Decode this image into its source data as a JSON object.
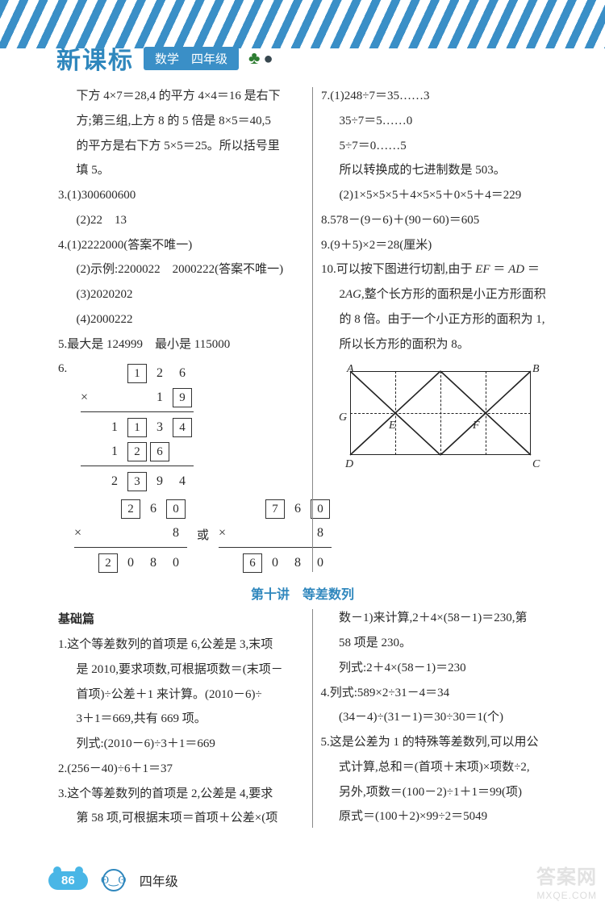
{
  "header": {
    "brand": "新课标",
    "tag": "数学　四年级"
  },
  "upper": {
    "left": {
      "p1a": "下方 4×7＝28,4 的平方 4×4＝16 是右下",
      "p1b": "方;第三组,上方 8 的 5 倍是 8×5＝40,5",
      "p1c": "的平方是右下方 5×5＝25。所以括号里",
      "p1d": "填 5。",
      "q3_1": "3.(1)300600600",
      "q3_2": "(2)22　13",
      "q4_1": "4.(1)2222000(答案不唯一)",
      "q4_2": "(2)示例:2200022　2000222(答案不唯一)",
      "q4_3": "(3)2020202",
      "q4_4": "(4)2000222",
      "q5": "5.最大是 124999　最小是 115000",
      "q6_label": "6.",
      "mult1": {
        "r1": [
          "",
          "1",
          "2",
          "6"
        ],
        "r1_box": [
          false,
          true,
          false,
          false
        ],
        "r2_op": "×",
        "r2": [
          "",
          "",
          "1",
          "9"
        ],
        "r2_box": [
          false,
          false,
          false,
          true
        ],
        "r3": [
          "1",
          "1",
          "3",
          "4"
        ],
        "r3_box": [
          false,
          true,
          false,
          true
        ],
        "r4": [
          "1",
          "2",
          "6",
          ""
        ],
        "r4_box": [
          false,
          true,
          true,
          false
        ],
        "r5": [
          "2",
          "3",
          "9",
          "4"
        ],
        "r5_box": [
          false,
          true,
          false,
          false
        ]
      },
      "mult2a": {
        "r1": [
          "",
          "2",
          "6",
          "0"
        ],
        "r1_box": [
          false,
          true,
          false,
          true
        ],
        "r2_op": "×",
        "r2": [
          "",
          "",
          "",
          "8"
        ],
        "r2_box": [
          false,
          false,
          false,
          false
        ],
        "r3": [
          "2",
          "0",
          "8",
          "0"
        ],
        "r3_box": [
          true,
          false,
          false,
          false
        ]
      },
      "or": "或",
      "mult2b": {
        "r1": [
          "",
          "7",
          "6",
          "0"
        ],
        "r1_box": [
          false,
          true,
          false,
          true
        ],
        "r2_op": "×",
        "r2": [
          "",
          "",
          "",
          "8"
        ],
        "r2_box": [
          false,
          false,
          false,
          false
        ],
        "r3": [
          "6",
          "0",
          "8",
          "0"
        ],
        "r3_box": [
          true,
          false,
          false,
          false
        ]
      }
    },
    "right": {
      "q7a": "7.(1)248÷7＝35……3",
      "q7b": "35÷7＝5……0",
      "q7c": "5÷7＝0……5",
      "q7d": "所以转换成的七进制数是 503。",
      "q7e": "(2)1×5×5×5＋4×5×5＋0×5＋4＝229",
      "q8": "8.578－(9－6)＋(90－60)＝605",
      "q9": "9.(9＋5)×2＝28(厘米)",
      "q10a": "10.可以按下图进行切割,由于 EF ＝ AD ＝",
      "q10b": "2AG,整个长方形的面积是小正方形面积",
      "q10c": "的 8 倍。由于一个小正方形的面积为 1,",
      "q10d": "所以长方形的面积为 8。",
      "labels": {
        "A": "A",
        "B": "B",
        "C": "C",
        "D": "D",
        "E": "E",
        "F": "F",
        "G": "G"
      }
    }
  },
  "section_title": "第十讲　等差数列",
  "lower": {
    "subhead": "基础篇",
    "left": {
      "l1a": "1.这个等差数列的首项是 6,公差是 3,末项",
      "l1b": "是 2010,要求项数,可根据项数＝(末项－",
      "l1c": "首项)÷公差＋1 来计算。(2010－6)÷",
      "l1d": "3＋1＝669,共有 669 项。",
      "l1e": "列式:(2010－6)÷3＋1＝669",
      "l2": "2.(256－40)÷6＋1＝37",
      "l3a": "3.这个等差数列的首项是 2,公差是 4,要求",
      "l3b": "第 58 项,可根据末项＝首项＋公差×(项"
    },
    "right": {
      "r3c": "数－1)来计算,2＋4×(58－1)＝230,第",
      "r3d": "58 项是 230。",
      "r3e": "列式:2＋4×(58－1)＝230",
      "r4a": "4.列式:589×2÷31－4＝34",
      "r4b": "(34－4)÷(31－1)＝30÷30＝1(个)",
      "r5a": "5.这是公差为 1 的特殊等差数列,可以用公",
      "r5b": "式计算,总和＝(首项＋末项)×项数÷2,",
      "r5c": "另外,项数＝(100－2)÷1＋1＝99(项)",
      "r5d": "原式＝(100＋2)×99÷2＝5049"
    }
  },
  "footer": {
    "page": "86",
    "grade": "四年级"
  },
  "watermark": {
    "top": "答案网",
    "bottom": "MXQE.COM"
  }
}
